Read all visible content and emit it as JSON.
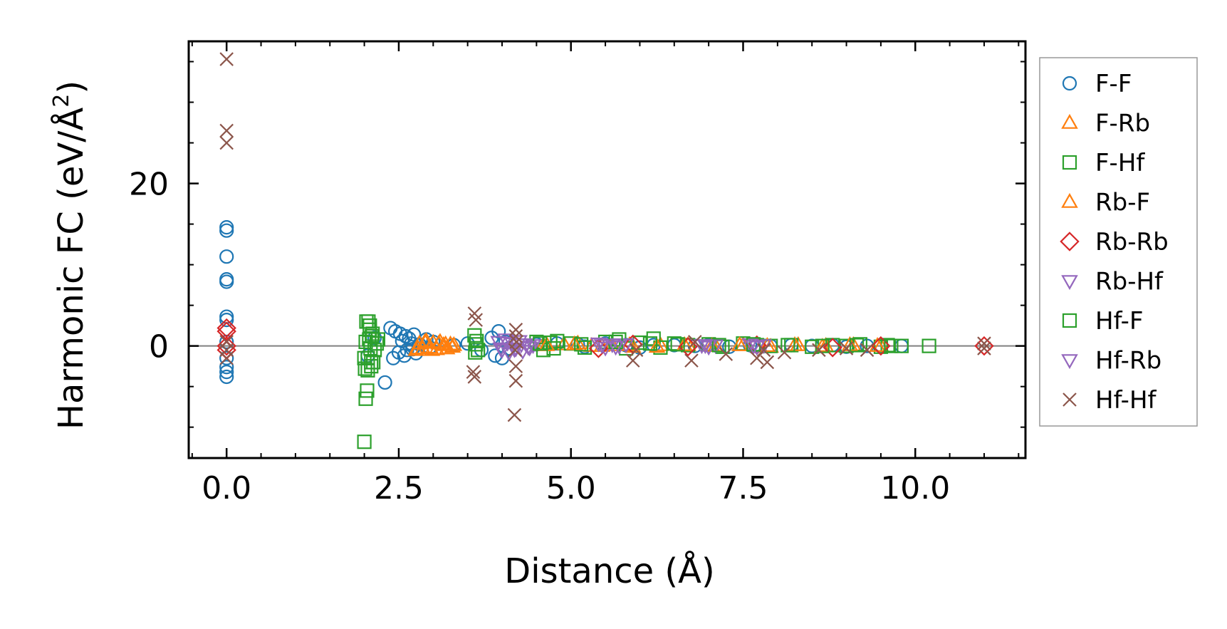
{
  "chart_data": {
    "type": "scatter",
    "xlabel": "Distance (Å)",
    "ylabel": "Harmonic FC (eV/Å",
    "ylabel_sup": "2",
    "ylabel_close": ")",
    "xlim": [
      -0.55,
      11.6
    ],
    "ylim": [
      -13.8,
      37.5
    ],
    "xticks": [
      0.0,
      2.5,
      5.0,
      7.5,
      10.0
    ],
    "xtick_labels": [
      "0.0",
      "2.5",
      "5.0",
      "7.5",
      "10.0"
    ],
    "yticks": [
      0,
      20
    ],
    "ytick_labels": [
      "0",
      "20"
    ],
    "zero_line": true,
    "legend_position": "outside-right",
    "series": [
      {
        "name": "F-F",
        "marker": "circle",
        "color": "#1f77b4",
        "x": [
          0,
          0,
          0,
          0,
          0,
          0,
          0,
          0,
          0,
          0,
          0,
          0,
          2.05,
          2.15,
          2.3,
          2.38,
          2.42,
          2.45,
          2.5,
          2.52,
          2.55,
          2.58,
          2.6,
          2.62,
          2.65,
          2.68,
          2.7,
          2.72,
          2.75,
          2.8,
          2.9,
          2.95,
          3.0,
          3.3,
          3.5,
          3.7,
          3.85,
          3.9,
          3.95,
          4.0,
          4.05,
          4.1,
          4.5,
          4.8,
          5.1,
          5.2,
          5.5,
          5.8,
          6.0,
          6.2,
          6.5,
          6.8,
          7.0,
          7.3,
          7.6,
          7.9,
          8.2,
          8.5,
          8.8,
          9.0,
          9.3,
          9.5,
          9.8
        ],
        "y": [
          14.6,
          14.2,
          11,
          8.2,
          7.9,
          3.6,
          3.2,
          -1.5,
          -2.6,
          -3.2,
          -3.8,
          0.5,
          -1.2,
          1,
          -4.5,
          2.2,
          -1.5,
          1.8,
          -0.8,
          1.5,
          0.6,
          -1.2,
          1.2,
          -0.5,
          0.9,
          0.3,
          -0.4,
          1.4,
          -0.9,
          0.2,
          0.8,
          -0.2,
          0.5,
          0.1,
          0.3,
          -0.5,
          1,
          -1.2,
          1.8,
          -1.5,
          0.5,
          -0.3,
          0.2,
          0.3,
          0.2,
          -0.1,
          0.3,
          0.1,
          -0.2,
          0.1,
          0.1,
          0,
          0.1,
          -0.1,
          0.1,
          0,
          0.1,
          0,
          0.1,
          -0.1,
          0,
          0.1,
          0
        ]
      },
      {
        "name": "F-Rb",
        "marker": "triangle-up",
        "color": "#ff7f0e",
        "x": [
          2.75,
          2.8,
          2.85,
          2.9,
          2.95,
          3.0,
          3.05,
          3.1,
          3.15,
          3.2,
          3.25,
          3.3,
          4.6,
          4.9,
          5.1,
          5.3,
          5.6,
          5.9,
          6.3,
          6.7,
          7.1,
          7.5,
          7.9,
          8.3,
          8.7,
          9.1,
          9.5
        ],
        "y": [
          -0.5,
          0.3,
          -0.3,
          0.6,
          -0.2,
          0.4,
          -0.4,
          0.5,
          0.1,
          -0.3,
          0.2,
          0.1,
          0.1,
          0.2,
          0.3,
          0,
          0.1,
          -0.1,
          0.1,
          0.1,
          0,
          0.1,
          -0.1,
          0.1,
          0,
          0.1,
          0
        ]
      },
      {
        "name": "F-Hf",
        "marker": "square",
        "color": "#2ca02c",
        "x": [
          2.0,
          2.02,
          2.04,
          2.06,
          2.08,
          2.1,
          2.12,
          2.15,
          2.2,
          2.0,
          2.05,
          2.1,
          2.02,
          2.08,
          3.6,
          3.65,
          3.62,
          4.5,
          4.6,
          4.7,
          4.8,
          5.0,
          5.2,
          5.5,
          5.7,
          5.8,
          6.0,
          6.2,
          6.3,
          6.5,
          6.7,
          7.0,
          7.2,
          7.5,
          7.7,
          7.9,
          8.2,
          8.5,
          8.8,
          9.0,
          9.2,
          9.5,
          9.6,
          9.8,
          10.2
        ],
        "y": [
          -11.8,
          -6.5,
          -5.5,
          3,
          2.5,
          -2.5,
          1.5,
          -0.5,
          0.8,
          -1.5,
          -3,
          -2,
          0.5,
          2,
          1.3,
          -0.5,
          0.2,
          0.5,
          -0.5,
          0.4,
          0.6,
          0.3,
          -0.2,
          0.5,
          0.8,
          -0.3,
          0.4,
          0.9,
          -0.2,
          0.3,
          0.1,
          0.2,
          -0.1,
          0.3,
          0.1,
          0,
          0.1,
          -0.1,
          0.1,
          0,
          0.2,
          -0.1,
          0.1,
          0,
          0
        ]
      },
      {
        "name": "Rb-F",
        "marker": "triangle-up",
        "color": "#ff7f0e",
        "x": [
          2.78,
          2.88,
          2.98,
          3.08,
          3.18,
          3.28,
          4.65,
          5.05,
          5.45,
          5.85,
          6.25,
          6.65,
          7.05,
          7.45,
          7.85,
          8.25,
          8.65,
          9.05,
          9.45
        ],
        "y": [
          -0.3,
          0.5,
          -0.5,
          0.3,
          0.2,
          -0.1,
          0.1,
          0.2,
          0,
          0.1,
          -0.1,
          0.1,
          0,
          0.1,
          0,
          0.1,
          -0.1,
          0.1,
          0
        ]
      },
      {
        "name": "Rb-Rb",
        "marker": "diamond",
        "color": "#d62728",
        "x": [
          0,
          0,
          0,
          0,
          5.4,
          5.9,
          6.7,
          7.7,
          8.8,
          9.5,
          11.0
        ],
        "y": [
          2.2,
          1.8,
          0,
          -0.5,
          -0.3,
          0.2,
          -0.1,
          0.1,
          -0.2,
          0,
          0
        ]
      },
      {
        "name": "Rb-Hf",
        "marker": "triangle-down",
        "color": "#9467bd",
        "x": [
          3.95,
          4.0,
          4.05,
          4.1,
          4.15,
          4.2,
          4.25,
          4.3,
          4.35,
          4.4,
          4.45,
          5.4,
          5.5,
          5.6,
          5.7,
          5.8,
          6.9,
          7.0,
          7.1,
          7.6,
          7.7,
          7.8
        ],
        "y": [
          0.5,
          -0.5,
          0.8,
          -0.8,
          0.3,
          -0.3,
          0.6,
          -0.6,
          0.2,
          -0.2,
          0.1,
          0.3,
          -0.2,
          0.2,
          0,
          0.2,
          0.1,
          -0.1,
          0.1,
          0.2,
          -0.1,
          0.1
        ]
      },
      {
        "name": "Hf-F",
        "marker": "square",
        "color": "#2ca02c",
        "x": [
          2.01,
          2.03,
          2.05,
          2.07,
          2.09,
          2.11,
          2.13,
          2.18,
          3.61,
          3.63,
          4.55,
          4.75,
          5.15,
          5.65,
          6.15,
          6.55,
          7.15,
          7.65,
          8.15,
          8.65,
          9.15,
          9.65
        ],
        "y": [
          -2.8,
          3,
          -1.5,
          0.8,
          -0.3,
          1.2,
          -2,
          0.3,
          -0.8,
          0.6,
          0.3,
          -0.3,
          0.2,
          0.5,
          0.3,
          0.2,
          0.1,
          0.2,
          0.1,
          0,
          0.1,
          0
        ]
      },
      {
        "name": "Hf-Rb",
        "marker": "triangle-down",
        "color": "#9467bd",
        "x": [
          3.98,
          4.08,
          4.18,
          4.28,
          4.38,
          5.45,
          5.65,
          6.95,
          7.65
        ],
        "y": [
          -0.3,
          0.4,
          -0.4,
          0.2,
          -0.1,
          0.1,
          -0.1,
          0.1,
          0
        ]
      },
      {
        "name": "Hf-Hf",
        "marker": "x",
        "color": "#8c564b",
        "x": [
          0,
          0,
          0,
          0,
          0,
          0,
          3.6,
          3.62,
          3.58,
          3.6,
          4.18,
          4.2,
          4.2,
          4.19,
          4.21,
          4.2,
          4.2,
          5.9,
          5.95,
          6.75,
          6.8,
          7.25,
          7.7,
          7.8,
          7.85,
          8.1,
          8.6,
          9.0,
          9.3,
          11.0,
          11.0
        ],
        "y": [
          35.3,
          26.5,
          25,
          0.5,
          -0.5,
          -1.5,
          4,
          3.2,
          -3.2,
          -3.8,
          -8.5,
          -4.3,
          -2.5,
          -0.5,
          0.5,
          1.2,
          2,
          -1.8,
          -0.5,
          -1.8,
          0.5,
          -1,
          -1.5,
          -0.5,
          -2,
          -0.8,
          -0.5,
          -0.3,
          -0.5,
          0.3,
          -0.3
        ]
      }
    ]
  }
}
